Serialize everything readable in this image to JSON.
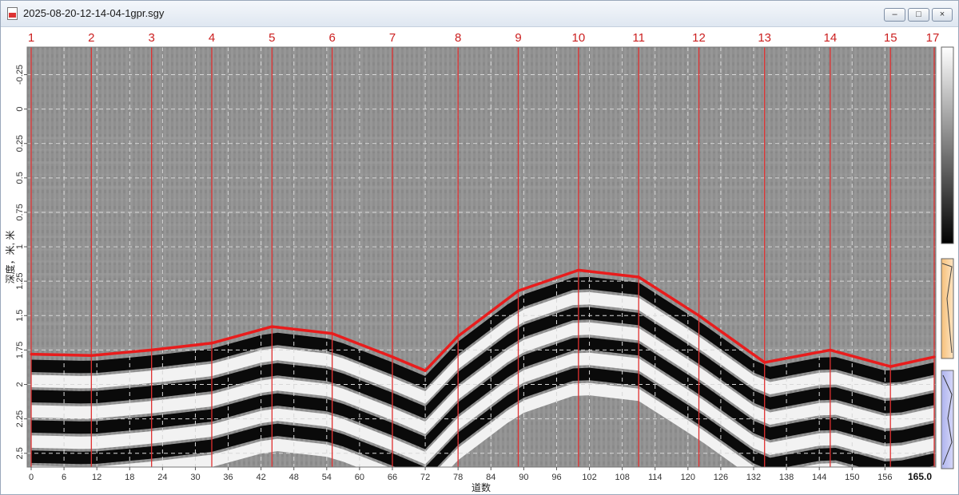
{
  "window": {
    "title": "2025-08-20-12-14-04-1gpr.sgy",
    "minimize_glyph": "–",
    "maximize_glyph": "□",
    "close_glyph": "×"
  },
  "markers": [
    "1",
    "2",
    "3",
    "4",
    "5",
    "6",
    "7",
    "8",
    "9",
    "10",
    "11",
    "12",
    "13",
    "14",
    "15",
    "17"
  ],
  "axis": {
    "ylabel": "深度，米, 米",
    "xlabel": "道数",
    "y_ticks": [
      "-0.25",
      "0",
      "0.25",
      "0.5",
      "0.75",
      "1",
      "1.25",
      "1.5",
      "1.75",
      "2",
      "2.25",
      "2.5"
    ],
    "x_ticks": [
      "0",
      "6",
      "12",
      "18",
      "24",
      "30",
      "36",
      "42",
      "48",
      "54",
      "60",
      "66",
      "72",
      "78",
      "84",
      "90",
      "96",
      "102",
      "108",
      "114",
      "120",
      "126",
      "132",
      "138",
      "144",
      "150",
      "156"
    ],
    "x_end_label": "165.0"
  },
  "colors": {
    "marker_line": "#e03030",
    "interface_line": "#e81c1c",
    "marker_text": "#cc1f1f"
  },
  "chart_data": {
    "type": "line",
    "title": "",
    "xlabel": "道数",
    "ylabel": "深度，米, 米",
    "xlim": [
      0,
      165
    ],
    "ylim": [
      2.6,
      -0.45
    ],
    "y_inverted": true,
    "grid": true,
    "marker_traces": [
      0,
      11,
      22,
      33,
      44,
      55,
      66,
      78,
      89,
      100,
      111,
      122,
      134,
      146,
      157,
      165
    ],
    "series": [
      {
        "x": [
          0,
          11,
          22,
          33,
          44,
          55,
          66,
          72,
          78,
          89,
          100,
          111,
          122,
          134,
          146,
          157,
          165
        ],
        "y": [
          1.78,
          1.79,
          1.75,
          1.7,
          1.58,
          1.63,
          1.8,
          1.9,
          1.65,
          1.32,
          1.17,
          1.22,
          1.5,
          1.84,
          1.75,
          1.87,
          1.8
        ]
      }
    ]
  }
}
